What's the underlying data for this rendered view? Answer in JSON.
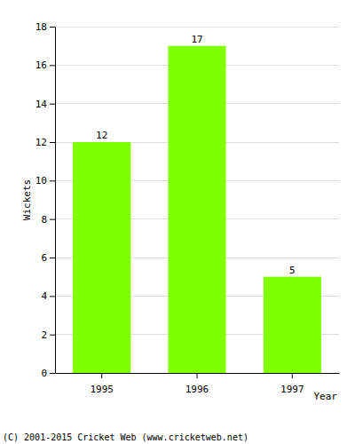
{
  "chart_data": {
    "type": "bar",
    "categories": [
      "1995",
      "1996",
      "1997"
    ],
    "values": [
      12,
      17,
      5
    ],
    "color": "#80ff00",
    "x_label": "Year",
    "y_label": "Wickets",
    "ylim": [
      0,
      18
    ],
    "yticks": [
      0,
      2,
      4,
      6,
      8,
      10,
      12,
      14,
      16,
      18
    ],
    "grid": true,
    "data_labels": true,
    "annotations": [
      "(C) 2001-2015 Cricket Web (www.cricketweb.net)"
    ]
  }
}
